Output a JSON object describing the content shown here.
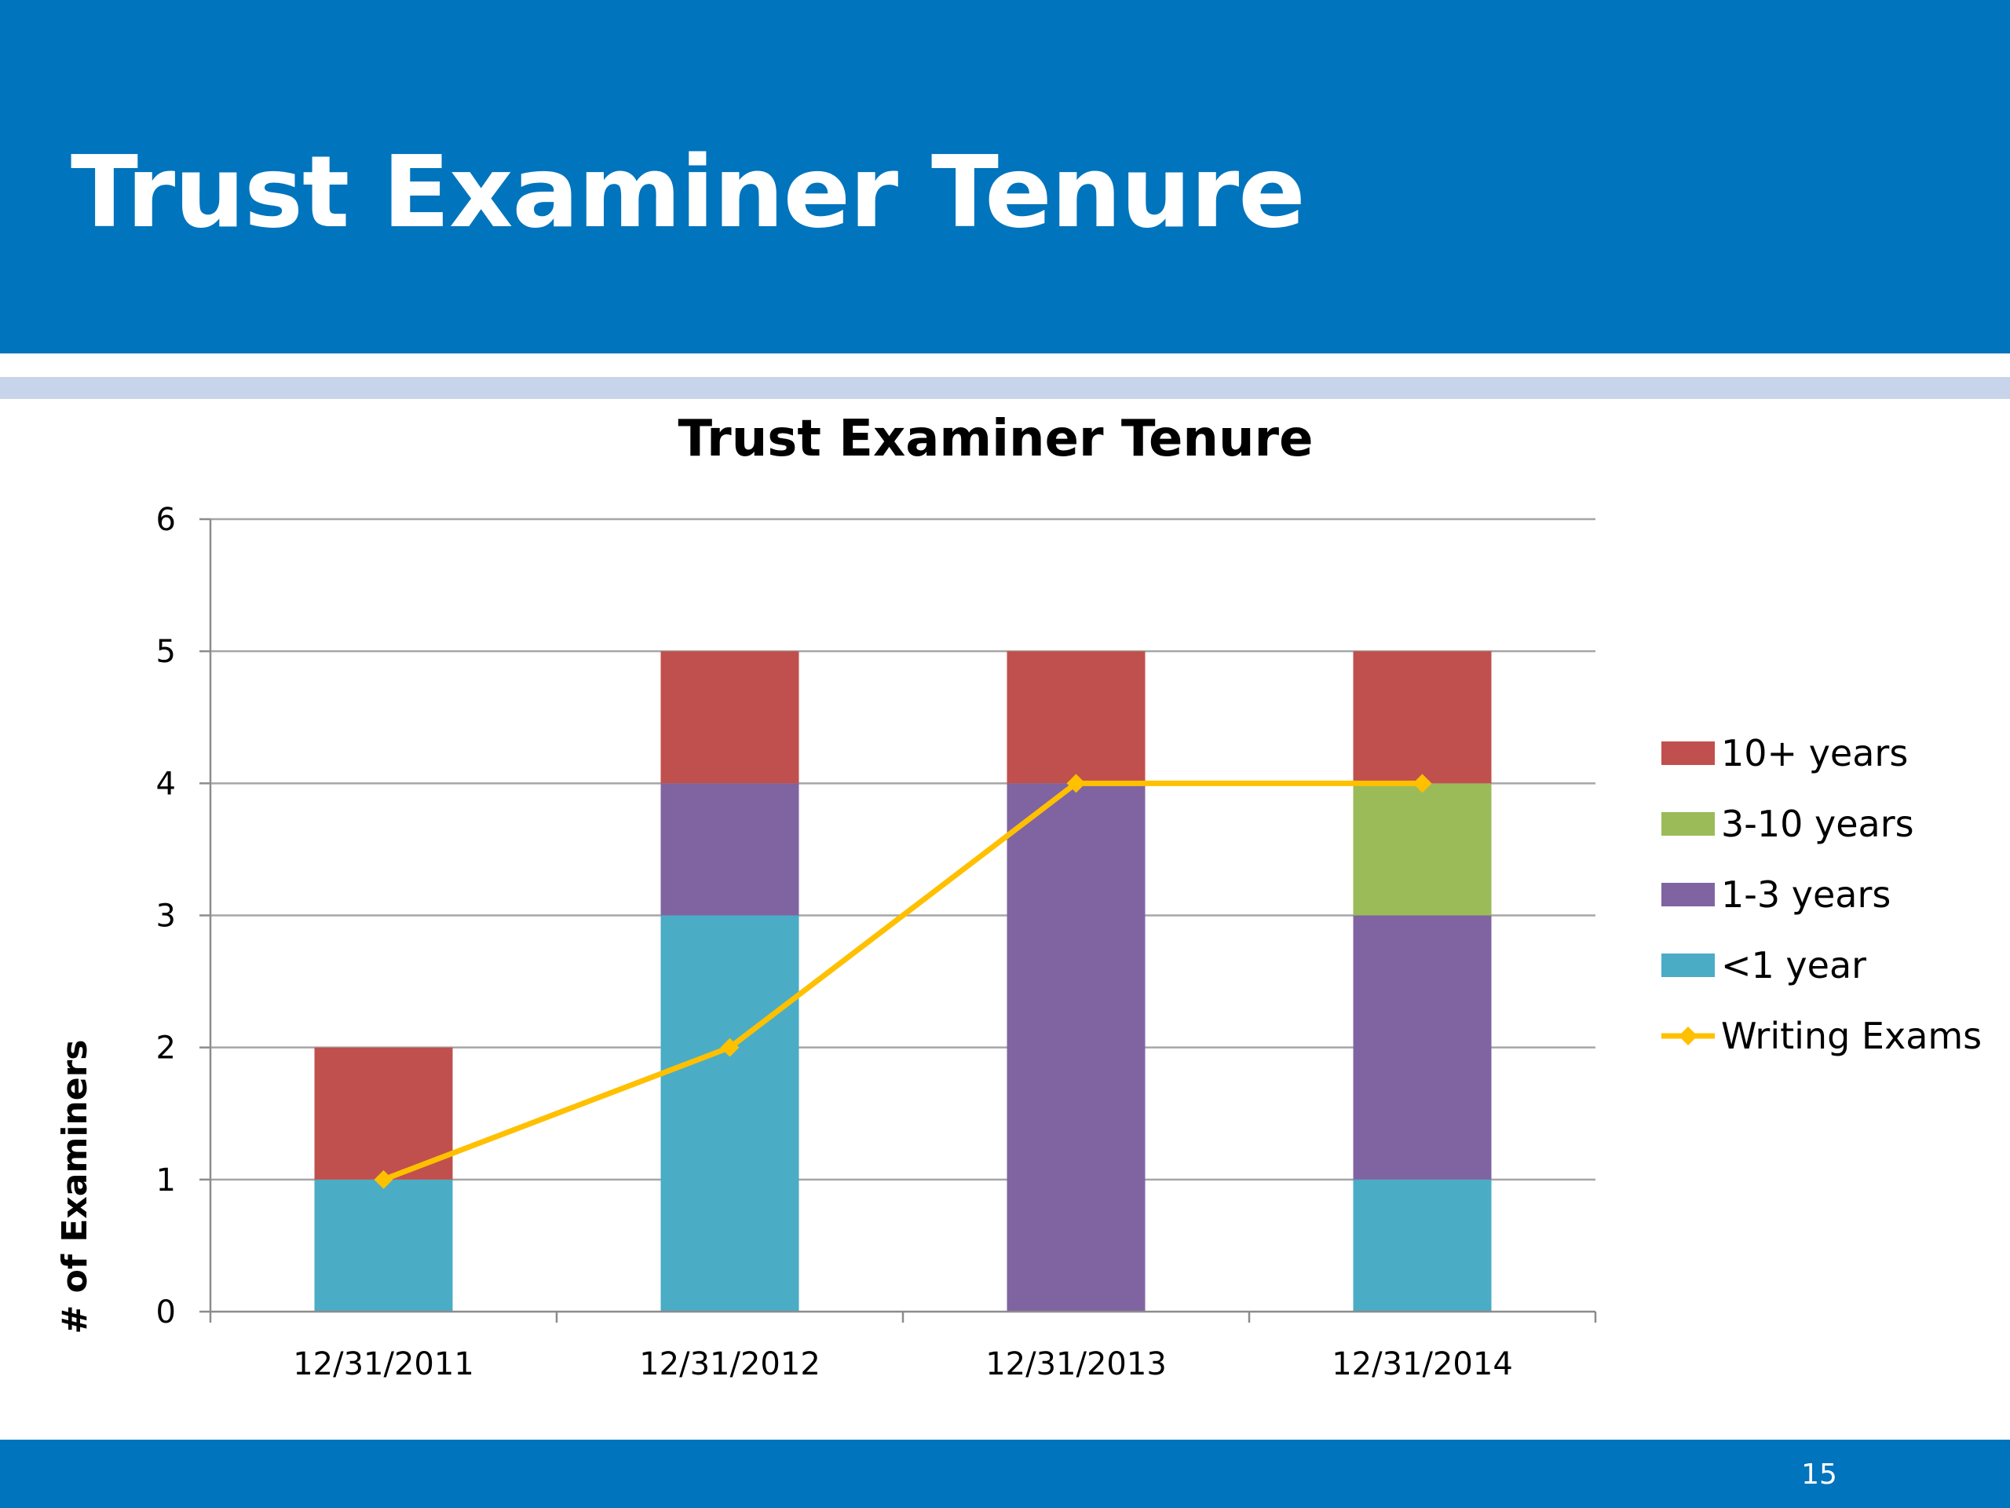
{
  "slide": {
    "title": "Trust Examiner Tenure",
    "page_number": "15"
  },
  "colors": {
    "header": "#0074bd",
    "accent_bar": "#c8d4ea",
    "gridline": "#a6a6a6",
    "axis": "#8c8c8c"
  },
  "chart_data": {
    "type": "bar",
    "stacked": true,
    "title": "Trust Examiner Tenure",
    "xlabel": "",
    "ylabel": "# of Examiners",
    "ylim": [
      0,
      6
    ],
    "yticks": [
      0,
      1,
      2,
      3,
      4,
      5,
      6
    ],
    "grid": true,
    "legend_position": "right",
    "categories": [
      "12/31/2011",
      "12/31/2012",
      "12/31/2013",
      "12/31/2014"
    ],
    "series": [
      {
        "name": "<1 year",
        "type": "bar",
        "color": "#4bacc6",
        "values": [
          1,
          3,
          0,
          1
        ]
      },
      {
        "name": "1-3 years",
        "type": "bar",
        "color": "#8064a2",
        "values": [
          0,
          1,
          4,
          2
        ]
      },
      {
        "name": "3-10 years",
        "type": "bar",
        "color": "#9bbb59",
        "values": [
          0,
          0,
          0,
          1
        ]
      },
      {
        "name": "10+ years",
        "type": "bar",
        "color": "#c0504d",
        "values": [
          1,
          1,
          1,
          1
        ]
      },
      {
        "name": "Writing Exams",
        "type": "line",
        "marker": "diamond",
        "color": "#ffc000",
        "values": [
          1,
          2,
          4,
          4
        ]
      }
    ],
    "legend_order": [
      "10+ years",
      "3-10 years",
      "1-3 years",
      "<1 year",
      "Writing Exams"
    ]
  }
}
